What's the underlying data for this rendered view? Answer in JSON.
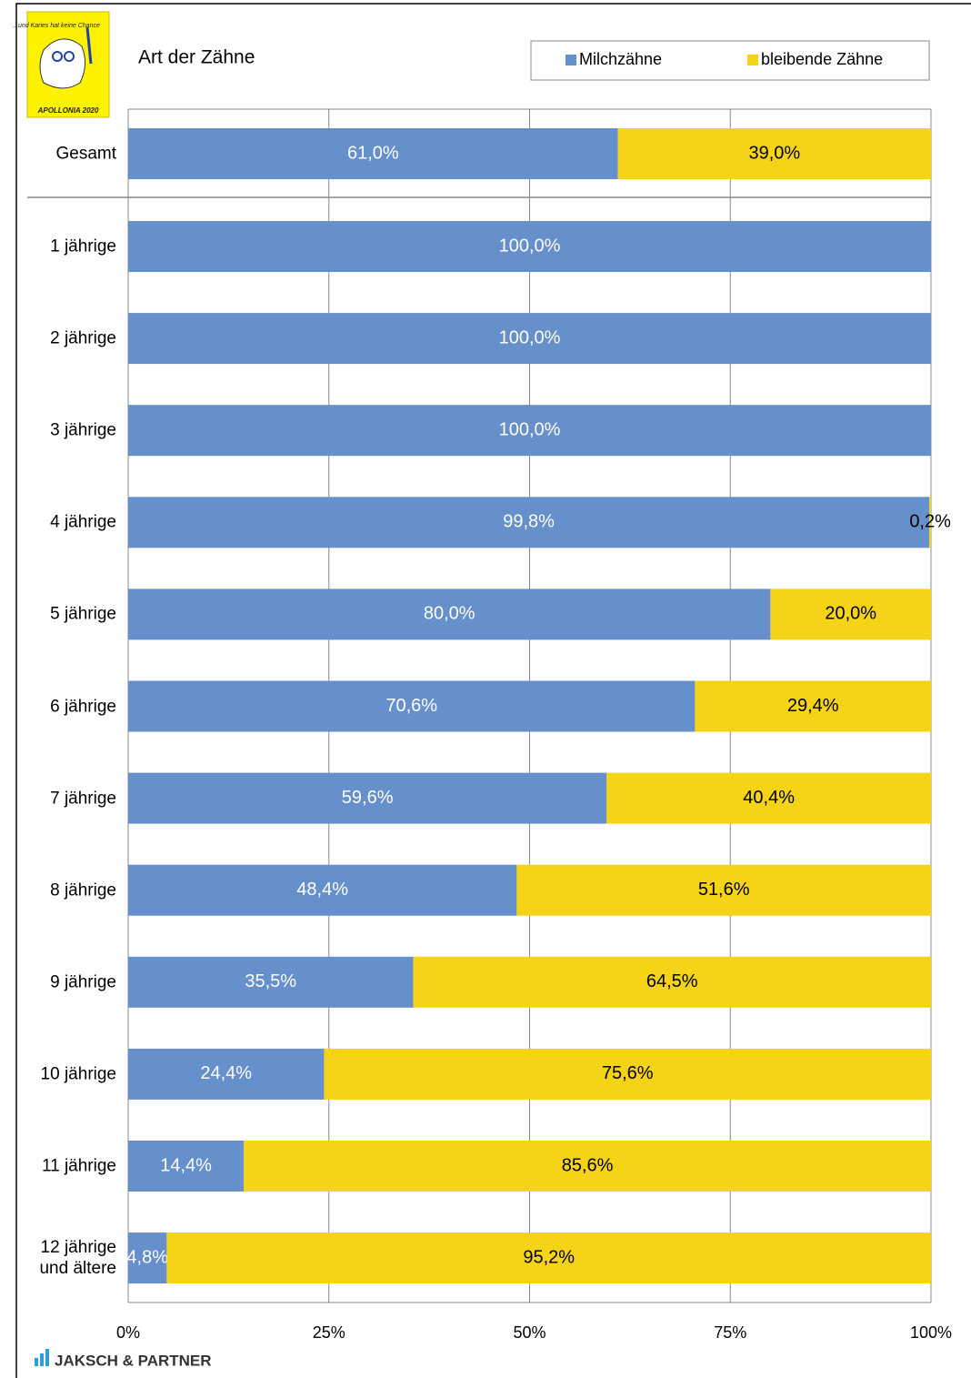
{
  "chart_data": {
    "type": "stacked_barh",
    "title": "Art der Zähne",
    "categories": [
      "Gesamt",
      "1 jährige",
      "2 jährige",
      "3 jährige",
      "4 jährige",
      "5 jährige",
      "6 jährige",
      "7 jährige",
      "8 jährige",
      "9 jährige",
      "10 jährige",
      "11 jährige",
      "12 jährige\nund ältere"
    ],
    "series": [
      {
        "name": "Milchzähne",
        "color": "#6590cc",
        "label_color": "#ffffff",
        "values": [
          61.0,
          100.0,
          100.0,
          100.0,
          99.8,
          80.0,
          70.6,
          59.6,
          48.4,
          35.5,
          24.4,
          14.4,
          4.8
        ],
        "value_labels": [
          "61,0%",
          "100,0%",
          "100,0%",
          "100,0%",
          "99,8%",
          "80,0%",
          "70,6%",
          "59,6%",
          "48,4%",
          "35,5%",
          "24,4%",
          "14,4%",
          "4,8%"
        ]
      },
      {
        "name": "bleibende Zähne",
        "color": "#f5d316",
        "label_color": "#000000",
        "values": [
          39.0,
          0,
          0,
          0,
          0.2,
          20.0,
          29.4,
          40.4,
          51.6,
          64.5,
          75.6,
          85.6,
          95.2
        ],
        "value_labels": [
          "39,0%",
          null,
          null,
          null,
          "0,2%",
          "20,0%",
          "29,4%",
          "40,4%",
          "51,6%",
          "64,5%",
          "75,6%",
          "85,6%",
          "95,2%"
        ]
      }
    ],
    "xlim": [
      0,
      100
    ],
    "xticks": [
      {
        "value": 0,
        "label": "0%"
      },
      {
        "value": 25,
        "label": "25%"
      },
      {
        "value": 50,
        "label": "50%"
      },
      {
        "value": 75,
        "label": "75%"
      },
      {
        "value": 100,
        "label": "100%"
      }
    ],
    "grid": true,
    "legend": "top-right"
  },
  "logos": {
    "badge_text": "...und Karies hat keine Chance",
    "badge_year": "APOLLONIA 2020",
    "footer": "JAKSCH & PARTNER"
  }
}
